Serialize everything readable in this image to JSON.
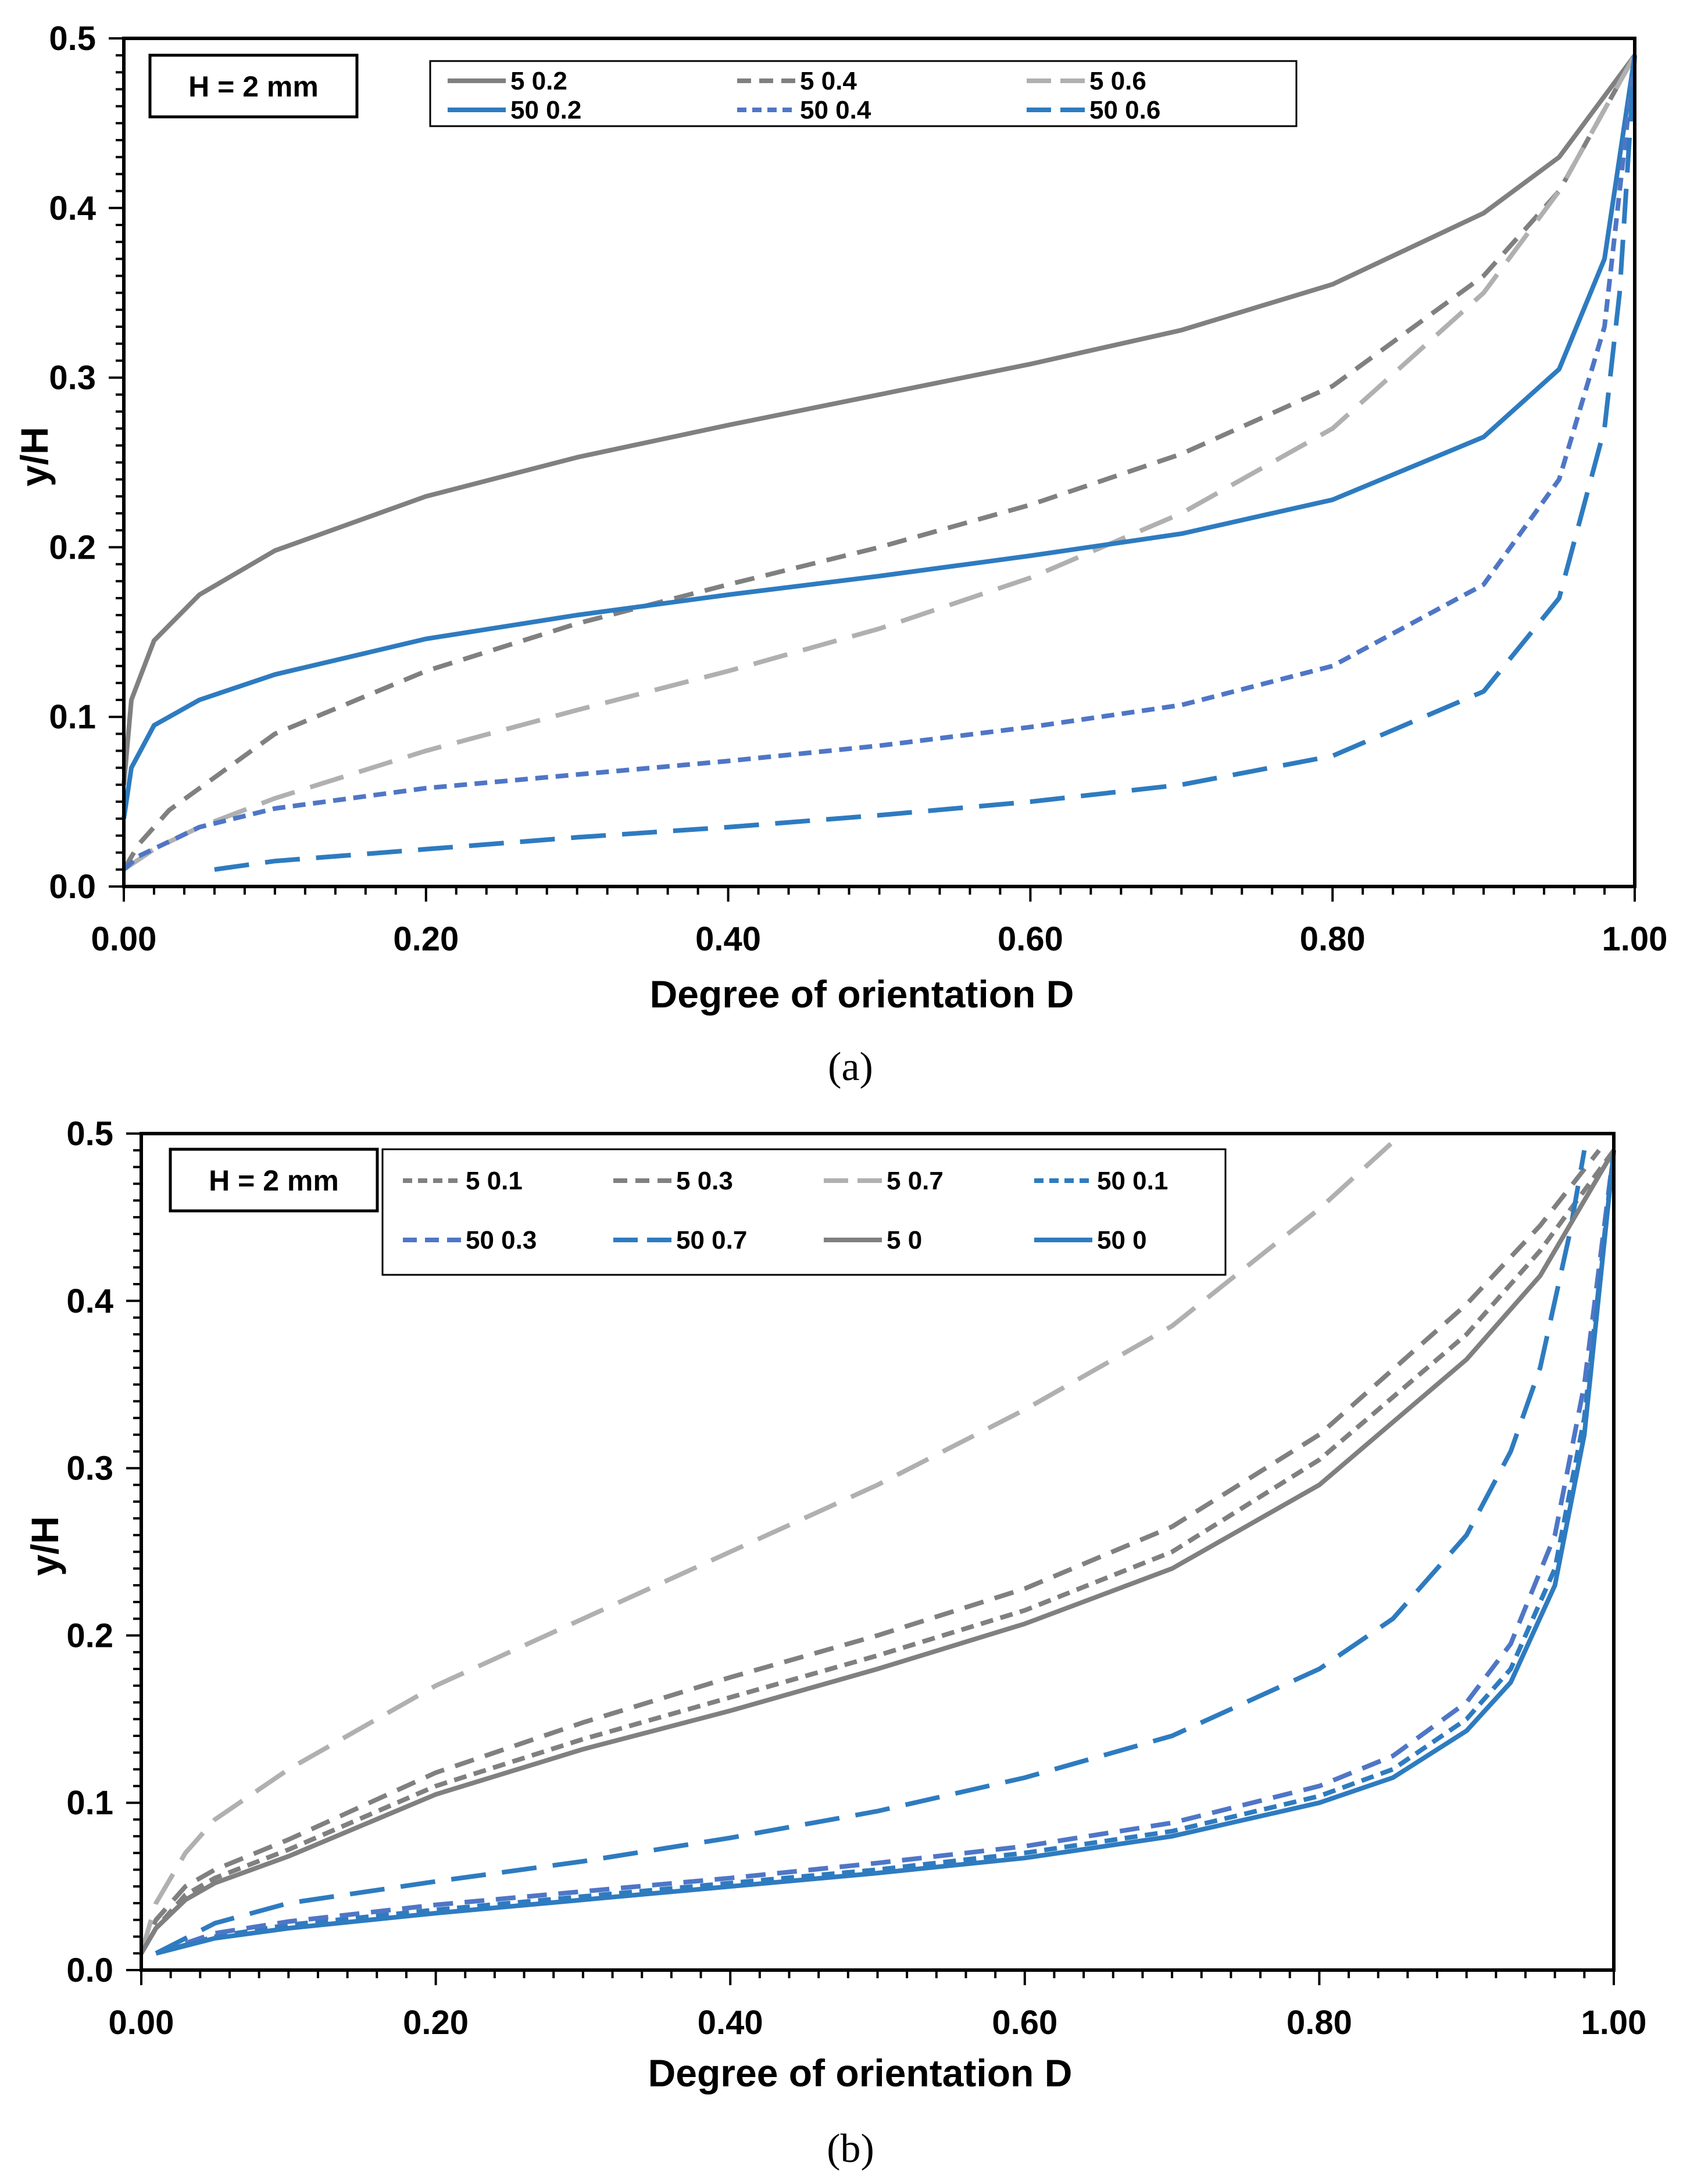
{
  "chart_data": [
    {
      "type": "line",
      "caption": "(a)",
      "annotation": "H = 2 mm",
      "xlabel": "Degree of orientation D",
      "ylabel": "y/H",
      "xlim": [
        0,
        1
      ],
      "ylim": [
        0,
        0.5
      ],
      "xticks": [
        "0.00",
        "0.20",
        "0.40",
        "0.60",
        "0.80",
        "1.00"
      ],
      "yticks": [
        "0.0",
        "0.1",
        "0.2",
        "0.3",
        "0.4",
        "0.5"
      ],
      "legend_columns": 3,
      "series": [
        {
          "name": "5 0.2",
          "color": "#808080",
          "dash": "solid",
          "x": [
            0,
            0.005,
            0.02,
            0.05,
            0.1,
            0.2,
            0.3,
            0.4,
            0.5,
            0.6,
            0.7,
            0.8,
            0.9,
            0.95,
            0.99,
            1.0
          ],
          "y": [
            0.06,
            0.11,
            0.145,
            0.172,
            0.198,
            0.23,
            0.253,
            0.272,
            0.29,
            0.308,
            0.328,
            0.355,
            0.397,
            0.43,
            0.478,
            0.49
          ]
        },
        {
          "name": "5 0.4",
          "color": "#808080",
          "dash": "medium",
          "x": [
            0,
            0.01,
            0.03,
            0.1,
            0.2,
            0.3,
            0.4,
            0.5,
            0.6,
            0.7,
            0.8,
            0.9,
            0.95,
            1.0
          ],
          "y": [
            0.01,
            0.025,
            0.045,
            0.09,
            0.127,
            0.155,
            0.178,
            0.2,
            0.225,
            0.255,
            0.295,
            0.36,
            0.41,
            0.49
          ]
        },
        {
          "name": "5 0.6",
          "color": "#b0b0b0",
          "dash": "long",
          "x": [
            0,
            0.02,
            0.05,
            0.1,
            0.2,
            0.3,
            0.4,
            0.5,
            0.6,
            0.7,
            0.8,
            0.9,
            0.95,
            1.0
          ],
          "y": [
            0.01,
            0.022,
            0.035,
            0.052,
            0.08,
            0.104,
            0.127,
            0.152,
            0.182,
            0.22,
            0.27,
            0.35,
            0.41,
            0.49
          ]
        },
        {
          "name": "50 0.2",
          "color": "#2e7bc0",
          "dash": "solid",
          "x": [
            0,
            0.005,
            0.02,
            0.05,
            0.1,
            0.2,
            0.3,
            0.4,
            0.5,
            0.6,
            0.7,
            0.8,
            0.9,
            0.95,
            0.98,
            1.0
          ],
          "y": [
            0.04,
            0.07,
            0.095,
            0.11,
            0.125,
            0.146,
            0.16,
            0.172,
            0.183,
            0.195,
            0.208,
            0.228,
            0.265,
            0.305,
            0.37,
            0.49
          ]
        },
        {
          "name": "50 0.4",
          "color": "#4f76c6",
          "dash": "short",
          "x": [
            0,
            0.01,
            0.05,
            0.1,
            0.2,
            0.3,
            0.4,
            0.5,
            0.6,
            0.7,
            0.8,
            0.9,
            0.95,
            0.98,
            1.0
          ],
          "y": [
            0.01,
            0.018,
            0.035,
            0.046,
            0.058,
            0.066,
            0.074,
            0.083,
            0.094,
            0.107,
            0.13,
            0.178,
            0.24,
            0.33,
            0.49
          ]
        },
        {
          "name": "50 0.6",
          "color": "#2e7bc0",
          "dash": "long",
          "x": [
            0.06,
            0.1,
            0.2,
            0.3,
            0.4,
            0.5,
            0.6,
            0.7,
            0.8,
            0.9,
            0.95,
            0.98,
            0.99,
            1.0
          ],
          "y": [
            0.01,
            0.015,
            0.022,
            0.029,
            0.035,
            0.042,
            0.05,
            0.06,
            0.077,
            0.115,
            0.17,
            0.27,
            0.35,
            0.49
          ]
        }
      ]
    },
    {
      "type": "line",
      "caption": "(b)",
      "annotation": "H = 2 mm",
      "xlabel": "Degree of orientation D",
      "ylabel": "y/H",
      "xlim": [
        0,
        1
      ],
      "ylim": [
        0,
        0.5
      ],
      "xticks": [
        "0.00",
        "0.20",
        "0.40",
        "0.60",
        "0.80",
        "1.00"
      ],
      "yticks": [
        "0.0",
        "0.1",
        "0.2",
        "0.3",
        "0.4",
        "0.5"
      ],
      "legend_columns": 4,
      "series": [
        {
          "name": "5 0.1",
          "color": "#808080",
          "dash": "short",
          "x": [
            0,
            0.01,
            0.03,
            0.05,
            0.1,
            0.2,
            0.3,
            0.4,
            0.5,
            0.6,
            0.7,
            0.8,
            0.9,
            0.95,
            1.0
          ],
          "y": [
            0.01,
            0.025,
            0.045,
            0.055,
            0.072,
            0.11,
            0.138,
            0.163,
            0.188,
            0.215,
            0.25,
            0.305,
            0.38,
            0.43,
            0.49
          ]
        },
        {
          "name": "5 0.3",
          "color": "#808080",
          "dash": "medium",
          "x": [
            0,
            0.01,
            0.03,
            0.05,
            0.1,
            0.2,
            0.3,
            0.4,
            0.5,
            0.6,
            0.7,
            0.8,
            0.9,
            0.95,
            0.99
          ],
          "y": [
            0.01,
            0.03,
            0.05,
            0.06,
            0.078,
            0.118,
            0.148,
            0.175,
            0.2,
            0.228,
            0.265,
            0.32,
            0.398,
            0.445,
            0.49
          ]
        },
        {
          "name": "5 0.7",
          "color": "#b0b0b0",
          "dash": "long",
          "x": [
            0,
            0.01,
            0.03,
            0.05,
            0.1,
            0.2,
            0.3,
            0.4,
            0.5,
            0.6,
            0.7,
            0.8,
            0.85
          ],
          "y": [
            0.01,
            0.04,
            0.07,
            0.09,
            0.12,
            0.17,
            0.21,
            0.25,
            0.29,
            0.335,
            0.385,
            0.455,
            0.495
          ]
        },
        {
          "name": "50 0.1",
          "color": "#2e7bc0",
          "dash": "short",
          "x": [
            0.01,
            0.05,
            0.1,
            0.2,
            0.3,
            0.4,
            0.5,
            0.6,
            0.7,
            0.8,
            0.85,
            0.9,
            0.93,
            0.96,
            0.98,
            1.0
          ],
          "y": [
            0.01,
            0.02,
            0.027,
            0.036,
            0.044,
            0.052,
            0.06,
            0.07,
            0.083,
            0.104,
            0.12,
            0.15,
            0.18,
            0.24,
            0.33,
            0.49
          ]
        },
        {
          "name": "50 0.3",
          "color": "#4f76c6",
          "dash": "medium",
          "x": [
            0.01,
            0.05,
            0.1,
            0.2,
            0.3,
            0.4,
            0.5,
            0.6,
            0.7,
            0.8,
            0.85,
            0.9,
            0.93,
            0.96,
            0.98,
            1.0
          ],
          "y": [
            0.01,
            0.022,
            0.029,
            0.039,
            0.047,
            0.055,
            0.064,
            0.074,
            0.088,
            0.11,
            0.128,
            0.16,
            0.195,
            0.26,
            0.35,
            0.49
          ]
        },
        {
          "name": "50 0.7",
          "color": "#2e7bc0",
          "dash": "long",
          "x": [
            0.01,
            0.05,
            0.1,
            0.2,
            0.3,
            0.4,
            0.5,
            0.6,
            0.7,
            0.8,
            0.85,
            0.9,
            0.93,
            0.95,
            0.97,
            0.98
          ],
          "y": [
            0.01,
            0.028,
            0.04,
            0.053,
            0.065,
            0.079,
            0.095,
            0.115,
            0.14,
            0.18,
            0.21,
            0.26,
            0.31,
            0.36,
            0.44,
            0.49
          ]
        },
        {
          "name": "5 0",
          "color": "#808080",
          "dash": "solid",
          "x": [
            0,
            0.01,
            0.03,
            0.05,
            0.1,
            0.2,
            0.3,
            0.4,
            0.5,
            0.6,
            0.7,
            0.8,
            0.9,
            0.95,
            1.0
          ],
          "y": [
            0.01,
            0.025,
            0.042,
            0.052,
            0.068,
            0.105,
            0.132,
            0.155,
            0.18,
            0.207,
            0.24,
            0.29,
            0.365,
            0.415,
            0.49
          ]
        },
        {
          "name": "50 0",
          "color": "#2e7bc0",
          "dash": "solid",
          "x": [
            0.01,
            0.05,
            0.1,
            0.2,
            0.3,
            0.4,
            0.5,
            0.6,
            0.7,
            0.8,
            0.85,
            0.9,
            0.93,
            0.96,
            0.98,
            1.0
          ],
          "y": [
            0.01,
            0.019,
            0.025,
            0.034,
            0.042,
            0.05,
            0.058,
            0.067,
            0.08,
            0.1,
            0.115,
            0.143,
            0.172,
            0.23,
            0.32,
            0.49
          ]
        }
      ]
    }
  ]
}
